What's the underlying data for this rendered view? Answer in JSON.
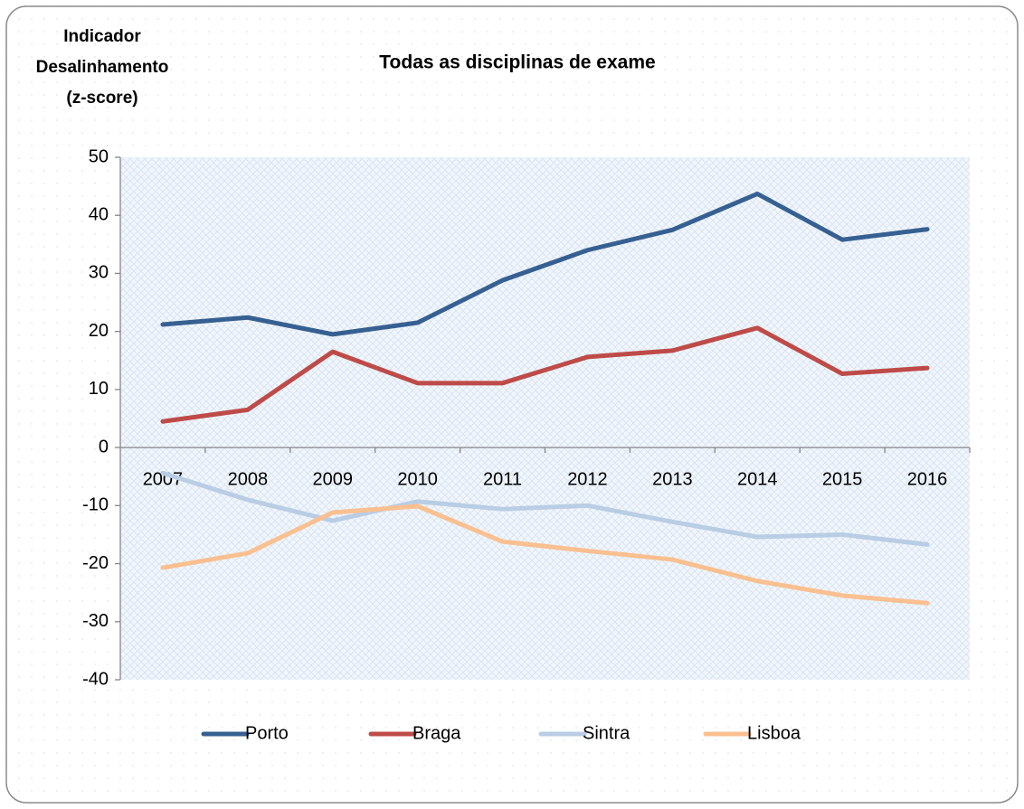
{
  "chart_data": {
    "type": "line",
    "title": "Todas as disciplinas de exame",
    "ylabel": [
      "Indicador",
      "Desalinhamento",
      "(z-score)"
    ],
    "categories": [
      "2007",
      "2008",
      "2009",
      "2010",
      "2011",
      "2012",
      "2013",
      "2014",
      "2015",
      "2016"
    ],
    "series": [
      {
        "name": "Porto",
        "color": "#376092",
        "values": [
          21.2,
          22.4,
          19.5,
          21.5,
          28.8,
          34.0,
          37.5,
          43.7,
          35.8,
          37.6
        ]
      },
      {
        "name": "Braga",
        "color": "#be4b48",
        "values": [
          4.5,
          6.5,
          16.5,
          11.1,
          11.1,
          15.6,
          16.7,
          20.6,
          12.7,
          13.7
        ]
      },
      {
        "name": "Sintra",
        "color": "#b9cde5",
        "values": [
          -4.4,
          -9.0,
          -12.6,
          -9.3,
          -10.6,
          -10.0,
          -12.8,
          -15.4,
          -15.0,
          -16.7
        ]
      },
      {
        "name": "Lisboa",
        "color": "#fac090",
        "values": [
          -20.7,
          -18.2,
          -11.2,
          -10.1,
          -16.2,
          -17.8,
          -19.3,
          -23.0,
          -25.5,
          -26.8
        ]
      }
    ],
    "ylim": [
      -40,
      50
    ],
    "yticks": [
      -40,
      -30,
      -20,
      -10,
      0,
      10,
      20,
      30,
      40,
      50
    ],
    "legend": "bottom"
  }
}
